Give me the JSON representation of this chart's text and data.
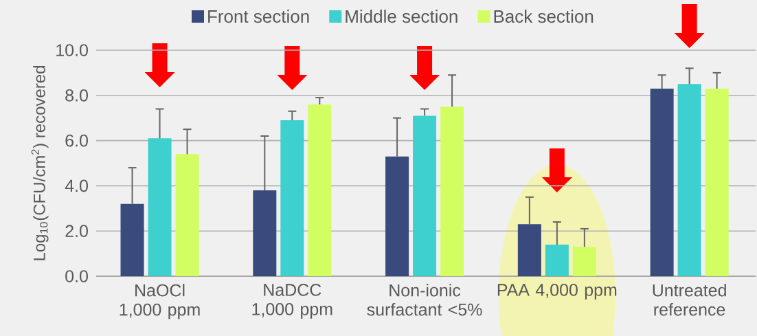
{
  "chart_data": {
    "type": "bar",
    "ylabel": "Log$_{10}$(CFU/cm$^{2}$) recovered",
    "categories": [
      "NaOCl 1,000 ppm",
      "NaDCC 1,000 ppm",
      "Non-ionic surfactant <5%",
      "PAA 4,000 ppm",
      "Untreated reference"
    ],
    "series": [
      {
        "name": "Front section",
        "color": "#394a7c",
        "values": [
          3.2,
          3.8,
          5.3,
          2.3,
          8.3
        ],
        "errors": [
          [
            3.2,
            4.8
          ],
          [
            3.8,
            6.2
          ],
          [
            5.3,
            7.0
          ],
          [
            2.3,
            3.5
          ],
          [
            8.3,
            8.9
          ]
        ]
      },
      {
        "name": "Middle section",
        "color": "#3ecfcf",
        "values": [
          6.1,
          6.9,
          7.1,
          1.4,
          8.5
        ],
        "errors": [
          [
            6.1,
            7.4
          ],
          [
            6.9,
            7.3
          ],
          [
            7.1,
            7.4
          ],
          [
            1.4,
            2.4
          ],
          [
            8.5,
            9.2
          ]
        ]
      },
      {
        "name": "Back section",
        "color": "#d2fe62",
        "values": [
          5.4,
          7.6,
          7.5,
          1.3,
          8.3
        ],
        "errors": [
          [
            5.4,
            6.5
          ],
          [
            7.6,
            7.9
          ],
          [
            7.5,
            8.9
          ],
          [
            1.3,
            2.1
          ],
          [
            8.3,
            9.0
          ]
        ]
      }
    ],
    "ylim": [
      0,
      10
    ],
    "yticks": [
      {
        "value": 0,
        "label": "0.0"
      },
      {
        "value": 2,
        "label": "2.0"
      },
      {
        "value": 4,
        "label": "4.0"
      },
      {
        "value": 6,
        "label": "6.0"
      },
      {
        "value": 8,
        "label": "8.0"
      },
      {
        "value": 10,
        "label": "10.0"
      }
    ],
    "grid": "y",
    "legend": "top"
  }
}
